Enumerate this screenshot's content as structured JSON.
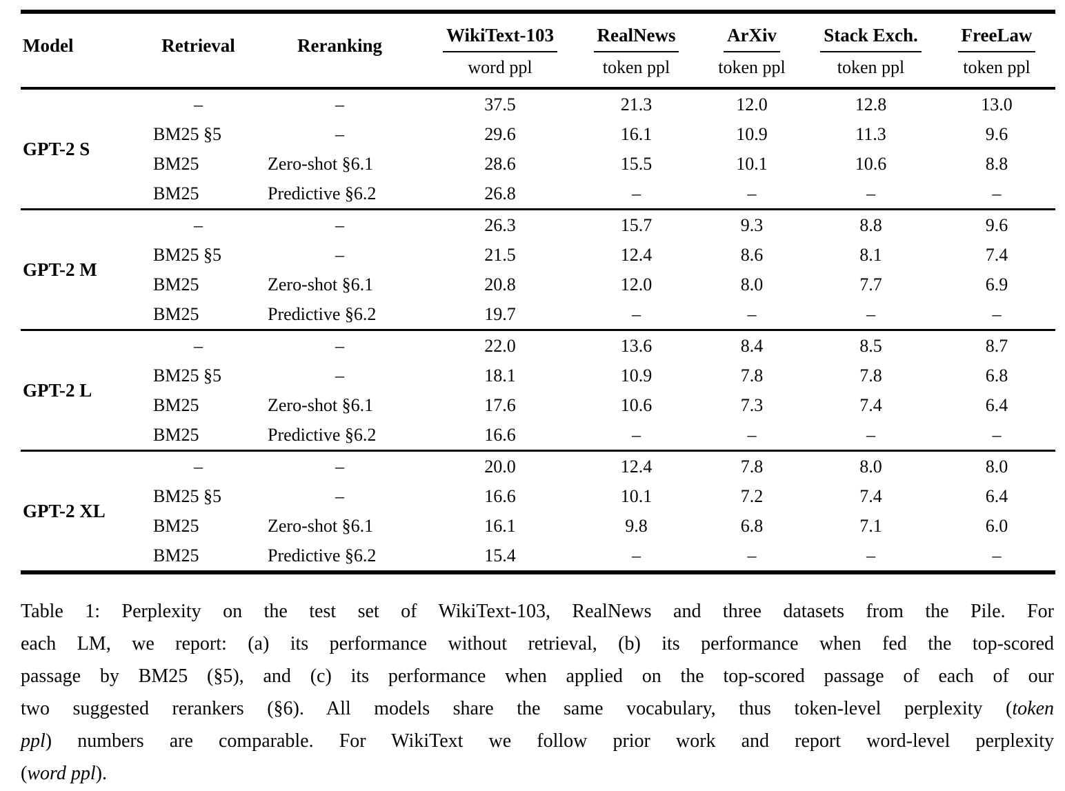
{
  "table": {
    "headers": {
      "model": "Model",
      "retrieval": "Retrieval",
      "reranking": "Reranking"
    },
    "datasets": [
      {
        "name": "WikiText-103",
        "unit": "word ppl"
      },
      {
        "name": "RealNews",
        "unit": "token ppl"
      },
      {
        "name": "ArXiv",
        "unit": "token ppl"
      },
      {
        "name": "Stack Exch.",
        "unit": "token ppl"
      },
      {
        "name": "FreeLaw",
        "unit": "token ppl"
      }
    ],
    "groups": [
      {
        "model": "GPT-2 S",
        "rows": [
          {
            "retrieval": "–",
            "reranking": "–",
            "values": [
              "37.5",
              "21.3",
              "12.0",
              "12.8",
              "13.0"
            ]
          },
          {
            "retrieval": "BM25 §5",
            "reranking": "–",
            "values": [
              "29.6",
              "16.1",
              "10.9",
              "11.3",
              "9.6"
            ]
          },
          {
            "retrieval": "BM25",
            "reranking": "Zero-shot §6.1",
            "values": [
              "28.6",
              "15.5",
              "10.1",
              "10.6",
              "8.8"
            ]
          },
          {
            "retrieval": "BM25",
            "reranking": "Predictive §6.2",
            "values": [
              "26.8",
              "–",
              "–",
              "–",
              "–"
            ]
          }
        ]
      },
      {
        "model": "GPT-2 M",
        "rows": [
          {
            "retrieval": "–",
            "reranking": "–",
            "values": [
              "26.3",
              "15.7",
              "9.3",
              "8.8",
              "9.6"
            ]
          },
          {
            "retrieval": "BM25 §5",
            "reranking": "–",
            "values": [
              "21.5",
              "12.4",
              "8.6",
              "8.1",
              "7.4"
            ]
          },
          {
            "retrieval": "BM25",
            "reranking": "Zero-shot §6.1",
            "values": [
              "20.8",
              "12.0",
              "8.0",
              "7.7",
              "6.9"
            ]
          },
          {
            "retrieval": "BM25",
            "reranking": "Predictive §6.2",
            "values": [
              "19.7",
              "–",
              "–",
              "–",
              "–"
            ]
          }
        ]
      },
      {
        "model": "GPT-2 L",
        "rows": [
          {
            "retrieval": "–",
            "reranking": "–",
            "values": [
              "22.0",
              "13.6",
              "8.4",
              "8.5",
              "8.7"
            ]
          },
          {
            "retrieval": "BM25 §5",
            "reranking": "–",
            "values": [
              "18.1",
              "10.9",
              "7.8",
              "7.8",
              "6.8"
            ]
          },
          {
            "retrieval": "BM25",
            "reranking": "Zero-shot §6.1",
            "values": [
              "17.6",
              "10.6",
              "7.3",
              "7.4",
              "6.4"
            ]
          },
          {
            "retrieval": "BM25",
            "reranking": "Predictive §6.2",
            "values": [
              "16.6",
              "–",
              "–",
              "–",
              "–"
            ]
          }
        ]
      },
      {
        "model": "GPT-2 XL",
        "rows": [
          {
            "retrieval": "–",
            "reranking": "–",
            "values": [
              "20.0",
              "12.4",
              "7.8",
              "8.0",
              "8.0"
            ]
          },
          {
            "retrieval": "BM25 §5",
            "reranking": "–",
            "values": [
              "16.6",
              "10.1",
              "7.2",
              "7.4",
              "6.4"
            ]
          },
          {
            "retrieval": "BM25",
            "reranking": "Zero-shot §6.1",
            "values": [
              "16.1",
              "9.8",
              "6.8",
              "7.1",
              "6.0"
            ]
          },
          {
            "retrieval": "BM25",
            "reranking": "Predictive §6.2",
            "values": [
              "15.4",
              "–",
              "–",
              "–",
              "–"
            ]
          }
        ]
      }
    ]
  },
  "caption": {
    "lines": [
      {
        "justify": true,
        "segments": [
          {
            "t": "Table 1: Perplexity on the test set of WikiText-103, RealNews and three datasets from the Pile. For",
            "i": false
          }
        ]
      },
      {
        "justify": true,
        "segments": [
          {
            "t": "each LM, we report: (a) its performance without retrieval, (b) its performance when fed the top-scored",
            "i": false
          }
        ]
      },
      {
        "justify": true,
        "segments": [
          {
            "t": "passage by BM25 (§5), and (c) its performance when applied on the top-scored passage of each of our",
            "i": false
          }
        ]
      },
      {
        "justify": true,
        "segments": [
          {
            "t": "two suggested rerankers (§6). All models share the same vocabulary, thus token-level perplexity (",
            "i": false
          },
          {
            "t": "token",
            "i": true
          }
        ]
      },
      {
        "justify": true,
        "segments": [
          {
            "t": "ppl",
            "i": true
          },
          {
            "t": ") numbers are comparable. For WikiText we follow prior work and report word-level perplexity",
            "i": false
          }
        ]
      },
      {
        "justify": false,
        "segments": [
          {
            "t": "(",
            "i": false
          },
          {
            "t": "word ppl",
            "i": true
          },
          {
            "t": ").",
            "i": false
          }
        ]
      }
    ]
  }
}
